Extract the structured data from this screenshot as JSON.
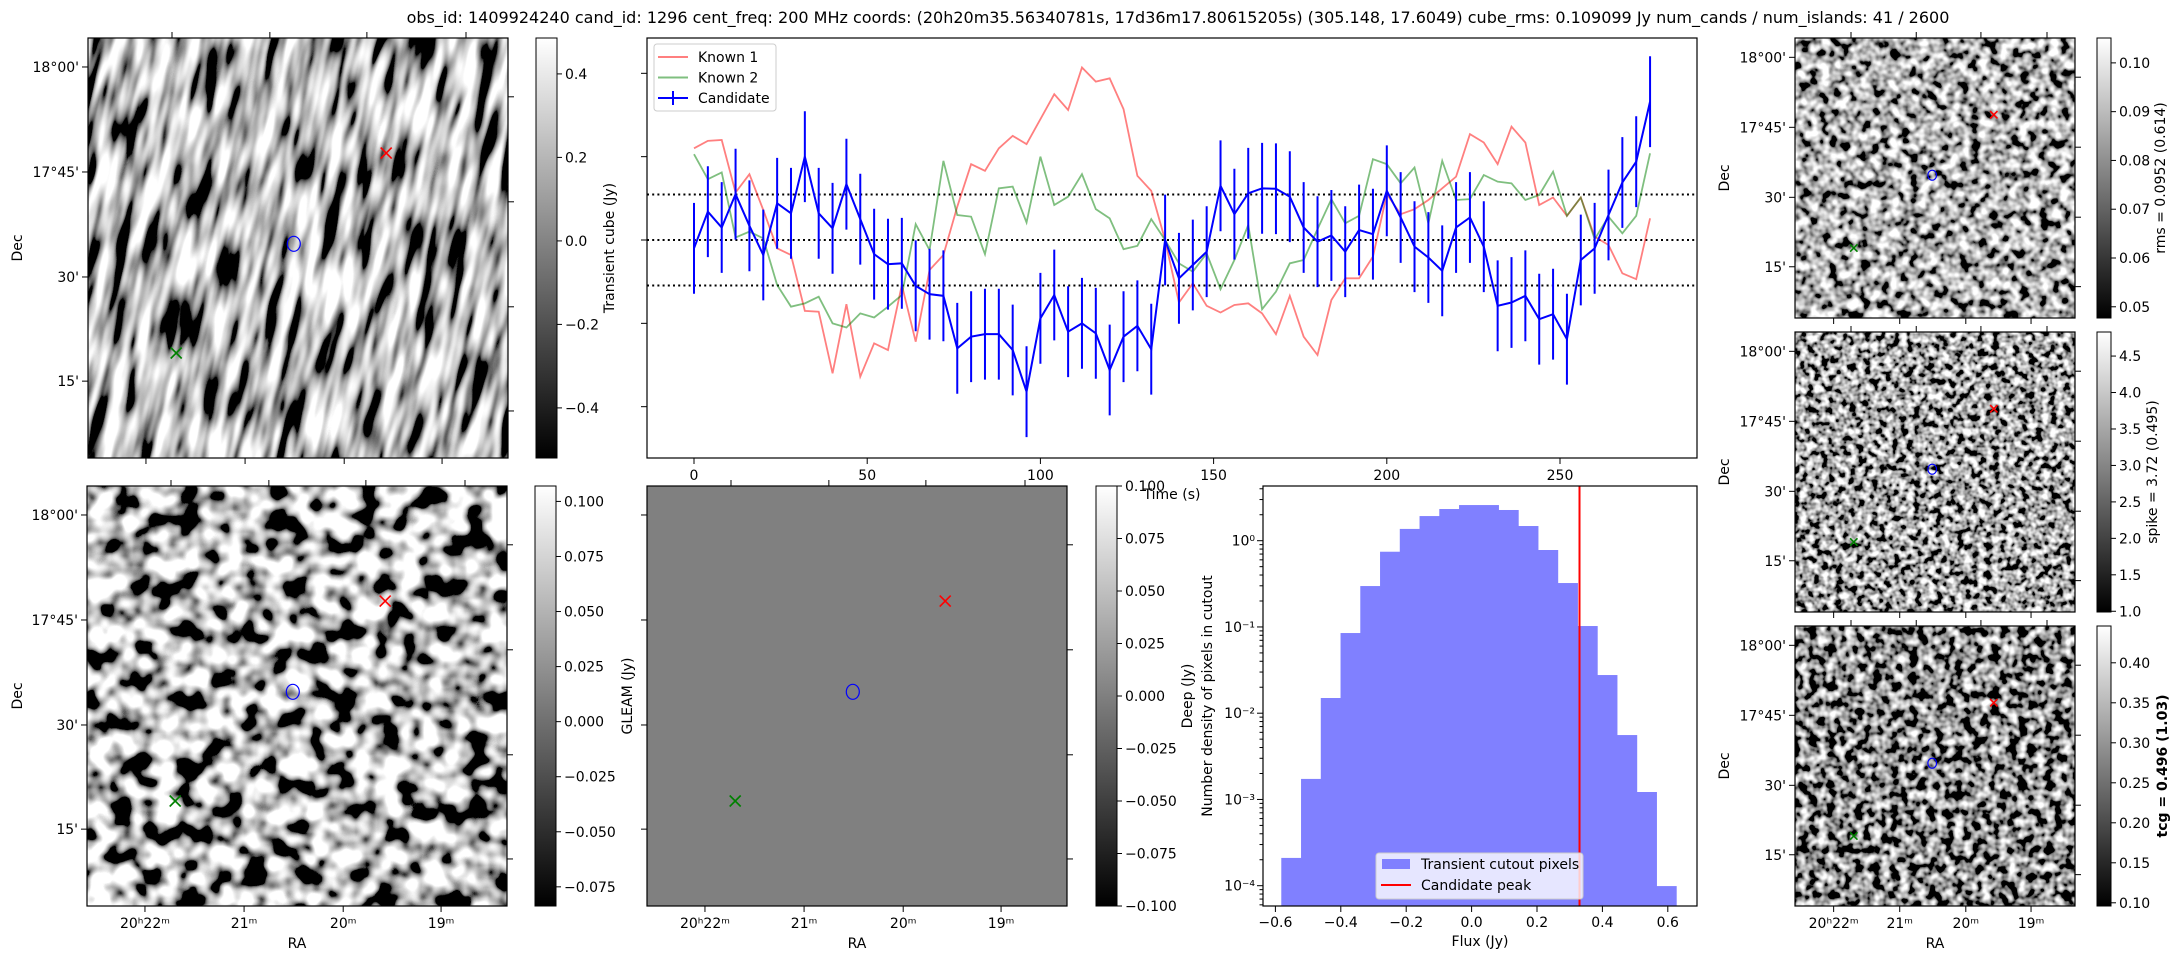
{
  "title": "obs_id: 1409924240 cand_id: 1296 cent_freq: 200 MHz coords: (20h20m35.56340781s, 17d36m17.80615205s) (305.148, 17.6049) cube_rms: 0.109099 Jy num_cands / num_islands: 41 / 2600",
  "sky_axes": {
    "xlabel": "RA",
    "ylabel": "Dec",
    "ra_ticks": [
      "20ʰ22ᵐ",
      "21ᵐ",
      "20ᵐ",
      "19ᵐ"
    ],
    "dec_ticks": [
      "18°00'",
      "17°45'",
      "30'",
      "15'"
    ]
  },
  "marker_colors": {
    "known1": "#ff0000",
    "known2": "#008000",
    "candidate": "#0000ff"
  },
  "images": [
    {
      "id": "transient",
      "colorbar_label": "Transient cube (Jy)",
      "vmin": -0.52,
      "vmax": 0.486,
      "cbar_ticks": [
        {
          "v": 0.4,
          "label": "0.4"
        },
        {
          "v": 0.2,
          "label": "0.2"
        },
        {
          "v": 0.0,
          "label": "0.0"
        },
        {
          "v": -0.2,
          "label": "−0.2"
        },
        {
          "v": -0.4,
          "label": "−0.4"
        }
      ]
    },
    {
      "id": "gleam",
      "colorbar_label": "GLEAM (Jy)",
      "vmin": -0.0837,
      "vmax": 0.107,
      "cbar_ticks": [
        {
          "v": 0.1,
          "label": "0.100"
        },
        {
          "v": 0.075,
          "label": "0.075"
        },
        {
          "v": 0.05,
          "label": "0.050"
        },
        {
          "v": 0.025,
          "label": "0.025"
        },
        {
          "v": 0.0,
          "label": "0.000"
        },
        {
          "v": -0.025,
          "label": "−0.025"
        },
        {
          "v": -0.05,
          "label": "−0.050"
        },
        {
          "v": -0.075,
          "label": "−0.075"
        }
      ]
    },
    {
      "id": "deep",
      "colorbar_label": "Deep (Jy)",
      "vmin": -0.1,
      "vmax": 0.1,
      "cbar_ticks": [
        {
          "v": 0.1,
          "label": "0.100"
        },
        {
          "v": 0.075,
          "label": "0.075"
        },
        {
          "v": 0.05,
          "label": "0.050"
        },
        {
          "v": 0.025,
          "label": "0.025"
        },
        {
          "v": 0.0,
          "label": "0.000"
        },
        {
          "v": -0.025,
          "label": "−0.025"
        },
        {
          "v": -0.05,
          "label": "−0.050"
        },
        {
          "v": -0.075,
          "label": "−0.075"
        },
        {
          "v": -0.1,
          "label": "−0.100"
        }
      ]
    },
    {
      "id": "rms",
      "colorbar_label": "rms = 0.0952 (0.614)",
      "vmin": 0.0477,
      "vmax": 0.1051,
      "cbar_ticks": [
        {
          "v": 0.1,
          "label": "0.10"
        },
        {
          "v": 0.09,
          "label": "0.09"
        },
        {
          "v": 0.08,
          "label": "0.08"
        },
        {
          "v": 0.07,
          "label": "0.07"
        },
        {
          "v": 0.06,
          "label": "0.06"
        },
        {
          "v": 0.05,
          "label": "0.05"
        }
      ]
    },
    {
      "id": "spike",
      "colorbar_label": "spike = 3.72 (0.495)",
      "vmin": 0.99,
      "vmax": 4.83,
      "cbar_ticks": [
        {
          "v": 4.5,
          "label": "4.5"
        },
        {
          "v": 4.0,
          "label": "4.0"
        },
        {
          "v": 3.5,
          "label": "3.5"
        },
        {
          "v": 3.0,
          "label": "3.0"
        },
        {
          "v": 2.5,
          "label": "2.5"
        },
        {
          "v": 2.0,
          "label": "2.0"
        },
        {
          "v": 1.5,
          "label": "1.5"
        },
        {
          "v": 1.0,
          "label": "1.0"
        }
      ]
    },
    {
      "id": "tcg",
      "colorbar_label": "tcg = 0.496 (1.03)",
      "vmin": 0.096,
      "vmax": 0.446,
      "cbar_ticks": [
        {
          "v": 0.4,
          "label": "0.40"
        },
        {
          "v": 0.35,
          "label": "0.35"
        },
        {
          "v": 0.3,
          "label": "0.30"
        },
        {
          "v": 0.25,
          "label": "0.25"
        },
        {
          "v": 0.2,
          "label": "0.20"
        },
        {
          "v": 0.15,
          "label": "0.15"
        },
        {
          "v": 0.1,
          "label": "0.10"
        }
      ]
    }
  ],
  "chart_data": [
    {
      "type": "line",
      "title": "",
      "xlabel": "Time (s)",
      "ylabel": "",
      "xlim": [
        -8,
        295
      ],
      "ylim": [
        -0.523,
        0.485
      ],
      "xticks": [
        0,
        50,
        100,
        150,
        200,
        250
      ],
      "yticks": [
        0.4,
        0.2,
        0.0,
        -0.2,
        -0.4
      ],
      "legend": "top-left",
      "x_start": 0,
      "x_step": 4,
      "hlines": [
        0.109099,
        0.0,
        -0.109099
      ],
      "series": [
        {
          "name": "Known 1",
          "color": "#ff0000",
          "alpha": 0.5,
          "values": [
            0.22,
            0.238,
            0.24,
            0.114,
            0.158,
            0.072,
            -0.02,
            -0.036,
            -0.17,
            -0.172,
            -0.32,
            -0.154,
            -0.328,
            -0.248,
            -0.264,
            -0.108,
            -0.244,
            -0.072,
            -0.036,
            0.08,
            0.182,
            0.166,
            0.22,
            0.25,
            0.23,
            0.29,
            0.35,
            0.312,
            0.414,
            0.38,
            0.388,
            0.314,
            0.154,
            0.118,
            0,
            -0.15,
            -0.104,
            -0.158,
            -0.174,
            -0.156,
            -0.152,
            -0.176,
            -0.226,
            -0.134,
            -0.232,
            -0.276,
            -0.144,
            -0.092,
            -0.092,
            -0.04,
            0.11,
            0.062,
            0.074,
            0.096,
            0.124,
            0.152,
            0.254,
            0.234,
            0.182,
            0.272,
            0.234,
            0.084,
            0.102,
            0.058,
            0.102,
            0.008,
            -0.012,
            -0.08,
            -0.094,
            0.052
          ]
        },
        {
          "name": "Known 2",
          "color": "#008000",
          "alpha": 0.5,
          "values": [
            0.206,
            0.146,
            0.162,
            0.006,
            0.02,
            0.004,
            -0.108,
            -0.16,
            -0.152,
            -0.136,
            -0.2,
            -0.21,
            -0.176,
            -0.186,
            -0.16,
            -0.132,
            0.038,
            -0.024,
            0.19,
            0.06,
            0.056,
            -0.034,
            0.124,
            0.128,
            0.042,
            0.2,
            0.084,
            0.104,
            0.158,
            0.074,
            0.052,
            -0.022,
            -0.014,
            0.05,
            0,
            -0.056,
            -0.076,
            -0.032,
            -0.118,
            -0.048,
            0.036,
            -0.166,
            -0.124,
            -0.056,
            -0.048,
            0.026,
            0.098,
            0.04,
            0.058,
            0.194,
            0.182,
            0.136,
            0.174,
            0.04,
            0.19,
            0.096,
            0.098,
            0.156,
            0.14,
            0.136,
            0.096,
            0.108,
            0.164,
            0.058,
            0.102,
            0.002,
            0.056,
            0.016,
            0.058,
            0.208
          ]
        },
        {
          "name": "Candidate",
          "color": "#0000ff",
          "alpha": 1,
          "yerr": 0.109,
          "values": [
            -0.02,
            0.068,
            0.03,
            0.11,
            0.034,
            -0.036,
            0.088,
            0.064,
            0.2,
            0.064,
            0.028,
            0.134,
            0.05,
            -0.034,
            -0.058,
            -0.056,
            -0.11,
            -0.13,
            -0.134,
            -0.26,
            -0.232,
            -0.226,
            -0.226,
            -0.264,
            -0.364,
            -0.188,
            -0.132,
            -0.22,
            -0.2,
            -0.224,
            -0.312,
            -0.232,
            -0.206,
            -0.262,
            0,
            -0.092,
            -0.06,
            -0.028,
            0.13,
            0.062,
            0.112,
            0.124,
            0.123,
            0.104,
            0.03,
            -0.004,
            0.011,
            -0.028,
            0.024,
            0.014,
            0.118,
            0.054,
            -0.016,
            -0.042,
            -0.074,
            0.03,
            0.054,
            -0.016,
            -0.158,
            -0.15,
            -0.134,
            -0.19,
            -0.178,
            -0.238,
            -0.048,
            -0.02,
            0.06,
            0.138,
            0.188,
            0.332
          ]
        }
      ]
    },
    {
      "type": "bar",
      "title": "",
      "xlabel": "Flux (Jy)",
      "ylabel": "Number density of pixels in cutout",
      "yscale": "log",
      "xlim": [
        -0.64,
        0.69
      ],
      "ylim": [
        5.8e-05,
        4.3
      ],
      "xticks": [
        {
          "v": -0.6,
          "label": "−0.6"
        },
        {
          "v": -0.4,
          "label": "−0.4"
        },
        {
          "v": -0.2,
          "label": "−0.2"
        },
        {
          "v": 0.0,
          "label": "0.0"
        },
        {
          "v": 0.2,
          "label": "0.2"
        },
        {
          "v": 0.4,
          "label": "0.4"
        },
        {
          "v": 0.6,
          "label": "0.6"
        }
      ],
      "yticks": [
        {
          "v": 1,
          "label": "10⁰"
        },
        {
          "v": 0.1,
          "label": "10⁻¹"
        },
        {
          "v": 0.01,
          "label": "10⁻²"
        },
        {
          "v": 0.001,
          "label": "10⁻³"
        },
        {
          "v": 0.0001,
          "label": "10⁻⁴"
        }
      ],
      "legend": "lower-center",
      "bin_start": -0.582,
      "bin_width": 0.0604,
      "series": [
        {
          "name": "Transient cutout pixels",
          "color": "#8080ff",
          "values": [
            0.00021,
            0.00173,
            0.015,
            0.085,
            0.298,
            0.745,
            1.37,
            1.93,
            2.33,
            2.59,
            2.59,
            2.27,
            1.48,
            0.78,
            0.323,
            0.1025,
            0.0277,
            0.00558,
            0.00122,
            9.9e-05
          ]
        }
      ],
      "vline": {
        "name": "Candidate peak",
        "value": 0.33,
        "color": "#ff0000"
      }
    }
  ]
}
